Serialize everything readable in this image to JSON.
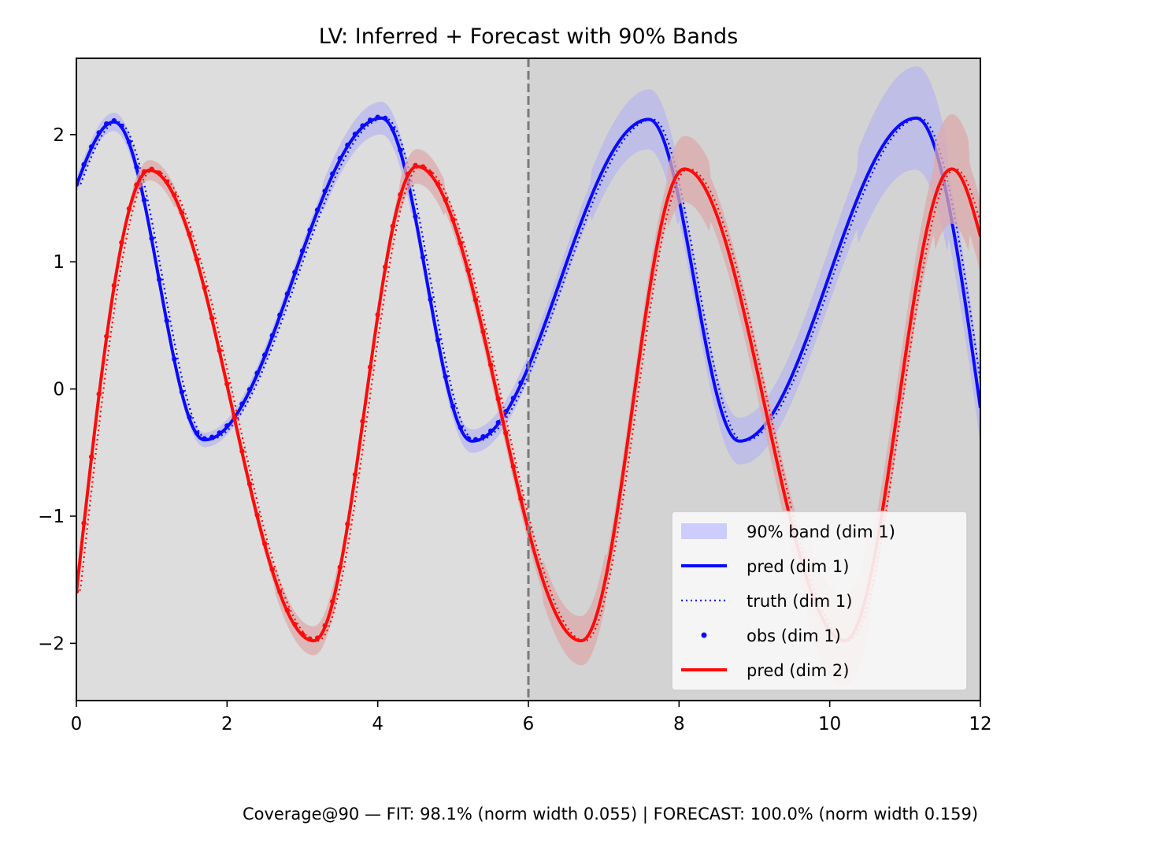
{
  "chart_data": {
    "type": "line",
    "title": "LV: Inferred + Forecast with 90% Bands",
    "xlabel": "",
    "ylabel": "",
    "xlim": [
      0,
      12
    ],
    "ylim": [
      -2.45,
      2.6
    ],
    "x_ticks": [
      0,
      2,
      4,
      6,
      8,
      10,
      12
    ],
    "y_ticks": [
      -2,
      -1,
      0,
      1,
      2
    ],
    "x_tick_labels": [
      "0",
      "2",
      "4",
      "6",
      "8",
      "10",
      "12"
    ],
    "y_tick_labels": [
      "−2",
      "−1",
      "0",
      "1",
      "2"
    ],
    "forecast_start": 6,
    "grid": false,
    "legend_position": "lower-right",
    "regions": {
      "fit_color": "#dddddd",
      "forecast_color": "#d3d3d3"
    },
    "legend": [
      {
        "label": "90% band (dim 1)",
        "kind": "band",
        "color": "#ccccff"
      },
      {
        "label": "pred (dim 1)",
        "kind": "line",
        "color": "#0a0aff"
      },
      {
        "label": "truth (dim 1)",
        "kind": "dotted",
        "color": "#0a0aff"
      },
      {
        "label": "obs (dim 1)",
        "kind": "dot",
        "color": "#0a0aff"
      },
      {
        "label": "pred (dim 2)",
        "kind": "line",
        "color": "#ff0a0a"
      }
    ],
    "series": [
      {
        "dim": 1,
        "color": "#0a0aff",
        "band_color": "#b7b7ee",
        "peaks": [
          {
            "t": 0.5,
            "y": 2.1
          },
          {
            "t": 4.05,
            "y": 2.13
          },
          {
            "t": 7.6,
            "y": 2.12
          },
          {
            "t": 11.15,
            "y": 2.13
          }
        ],
        "troughs": [
          {
            "t": 1.7,
            "y": -0.4
          },
          {
            "t": 5.25,
            "y": -0.41
          },
          {
            "t": 8.8,
            "y": -0.41
          }
        ],
        "start": {
          "t": 0,
          "y": 1.6
        },
        "end": {
          "t": 12,
          "y": -0.15
        }
      },
      {
        "dim": 2,
        "color": "#ff0a0a",
        "band_color": "#dcaaaa",
        "peaks": [
          {
            "t": 0.97,
            "y": 1.72
          },
          {
            "t": 4.52,
            "y": 1.75
          },
          {
            "t": 8.07,
            "y": 1.73
          },
          {
            "t": 11.62,
            "y": 1.73
          }
        ],
        "troughs": [
          {
            "t": 3.15,
            "y": -1.98
          },
          {
            "t": 6.7,
            "y": -1.98
          },
          {
            "t": 10.2,
            "y": -1.98
          }
        ],
        "start": {
          "t": 0,
          "y": -1.6
        },
        "end": {
          "t": 12,
          "y": 1.2
        }
      }
    ],
    "footer": "Coverage@90 — FIT: 98.1% (norm width 0.055) | FORECAST: 100.0% (norm width 0.159)"
  }
}
